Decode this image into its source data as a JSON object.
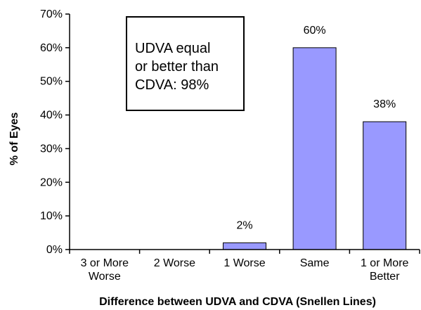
{
  "chart_data": {
    "type": "bar",
    "categories": [
      [
        "3 or More",
        "Worse"
      ],
      [
        "2 Worse"
      ],
      [
        "1 Worse"
      ],
      [
        "Same"
      ],
      [
        "1 or More",
        "Better"
      ]
    ],
    "values": [
      0,
      0,
      2,
      60,
      38
    ],
    "data_labels": [
      "",
      "",
      "2%",
      "60%",
      "38%"
    ],
    "title": "",
    "xlabel": "Difference between  UDVA and CDVA (Snellen Lines)",
    "ylabel": "% of Eyes",
    "ylim": [
      0,
      70
    ],
    "yticks": [
      0,
      10,
      20,
      30,
      40,
      50,
      60,
      70
    ],
    "ytick_labels": [
      "0%",
      "10%",
      "20%",
      "30%",
      "40%",
      "50%",
      "60%",
      "70%"
    ],
    "grid": false,
    "legend": "none",
    "bar_color": "#9999FF",
    "bar_edge_color": "#000000",
    "annotation": {
      "lines": [
        "UDVA equal",
        "or better than",
        "CDVA: 98%"
      ],
      "placement": "top-left"
    }
  }
}
